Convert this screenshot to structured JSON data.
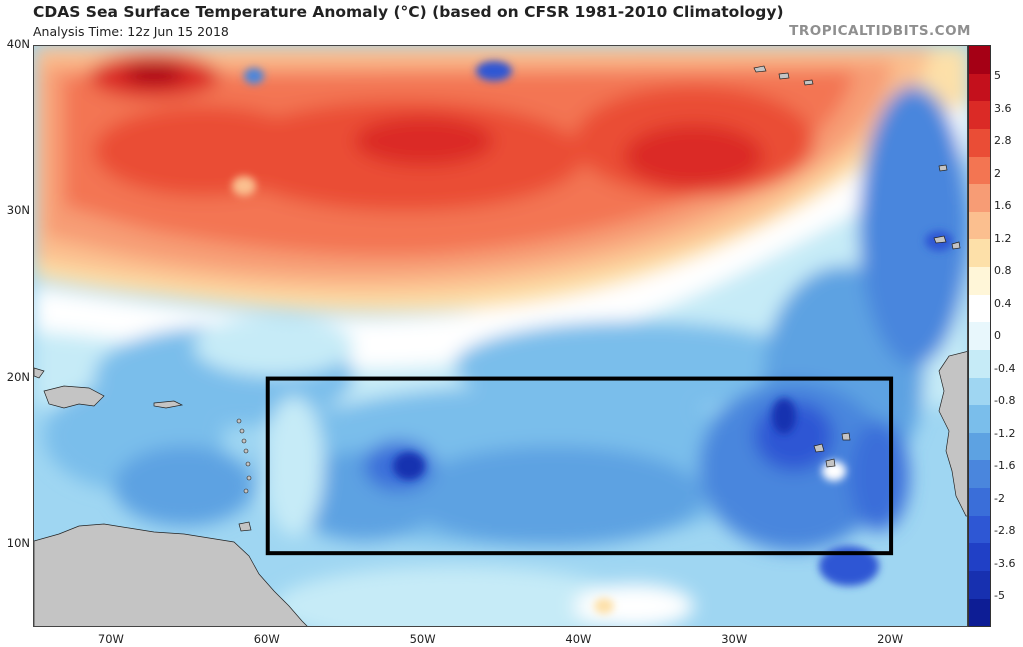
{
  "header": {
    "title": "CDAS Sea Surface Temperature Anomaly (°C) (based on CFSR 1981-2010 Climatology)",
    "analysis_time": "Analysis Time: 12z Jun 15 2018",
    "brand": "TROPICALTIDBITS.COM"
  },
  "map": {
    "domain": {
      "lon_min": -75,
      "lon_max": -15,
      "lat_min": 5,
      "lat_max": 40
    },
    "lat_labels": [
      {
        "text": "40N",
        "lat": 40
      },
      {
        "text": "30N",
        "lat": 30
      },
      {
        "text": "20N",
        "lat": 20
      },
      {
        "text": "10N",
        "lat": 10
      }
    ],
    "lon_labels": [
      {
        "text": "70W",
        "lon": -70
      },
      {
        "text": "60W",
        "lon": -60
      },
      {
        "text": "50W",
        "lon": -50
      },
      {
        "text": "40W",
        "lon": -40
      },
      {
        "text": "30W",
        "lon": -30
      },
      {
        "text": "20W",
        "lon": -20
      }
    ],
    "highlight_box": {
      "lon_min": -60,
      "lon_max": -20,
      "lat_min": 9.5,
      "lat_max": 20
    },
    "land_color": "#c4c4c4",
    "box_color": "#000000"
  },
  "colorbar": {
    "tick_labels": [
      "5",
      "3.6",
      "2.8",
      "2",
      "1.6",
      "1.2",
      "0.8",
      "0.4",
      "0",
      "-0.4",
      "-0.8",
      "-1.2",
      "-1.6",
      "-2",
      "-2.8",
      "-3.6",
      "-5"
    ],
    "colors": [
      "#a50015",
      "#c4101c",
      "#db2a26",
      "#ea4d36",
      "#f37552",
      "#f79c75",
      "#fbbf8f",
      "#fde0a9",
      "#fff6d8",
      "#ffffff",
      "#e8f7fc",
      "#c6ebf7",
      "#9fd6f2",
      "#7abeeb",
      "#5da2e2",
      "#4a86dd",
      "#3a6ed9",
      "#2e57d4",
      "#2040c6",
      "#1730b0",
      "#0d1d95"
    ]
  }
}
